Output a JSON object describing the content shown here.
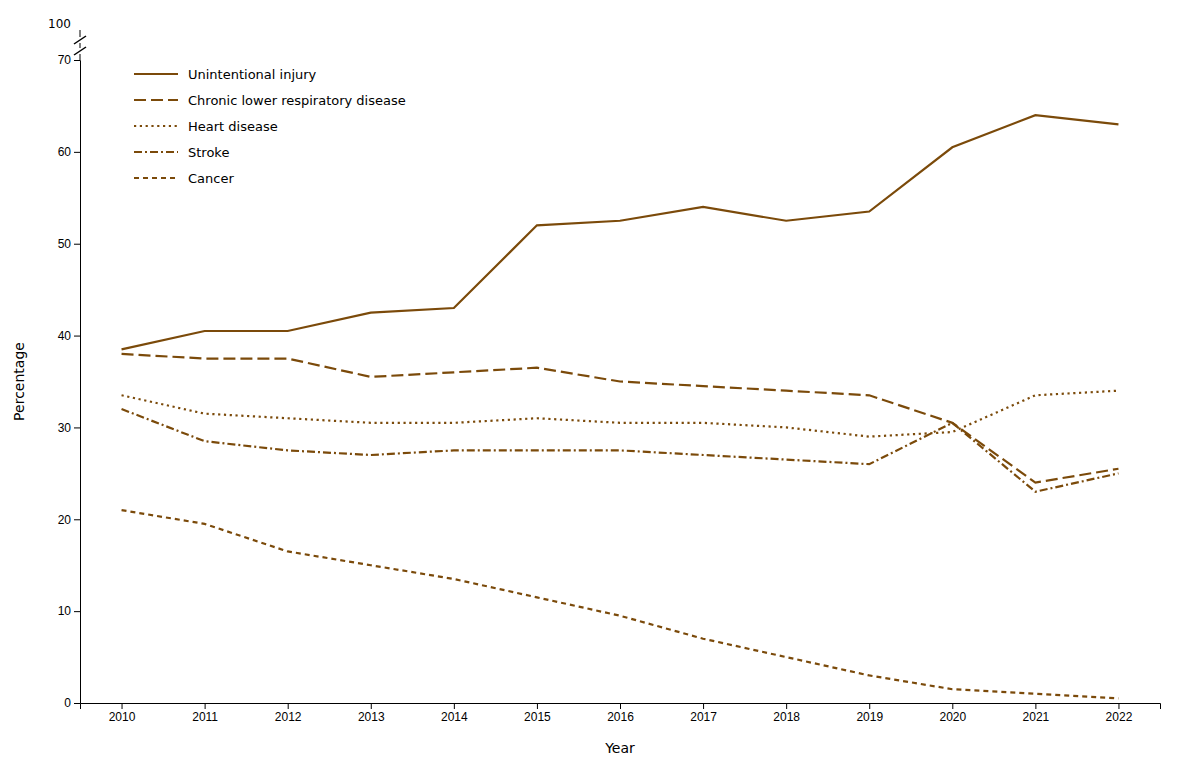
{
  "chart_data": {
    "type": "line",
    "x_label": "Year",
    "y_label": "Percentage",
    "x": [
      2010,
      2011,
      2012,
      2013,
      2014,
      2015,
      2016,
      2017,
      2018,
      2019,
      2020,
      2021,
      2022
    ],
    "series": [
      {
        "name": "Unintentional injury",
        "color": "#7B4A0A",
        "line_style": "solid",
        "values": [
          38.5,
          40.5,
          40.5,
          42.5,
          43.0,
          52.0,
          52.5,
          54.0,
          52.5,
          53.5,
          60.5,
          64.0,
          63.0
        ]
      },
      {
        "name": "Chronic lower respiratory disease",
        "color": "#7B4A0A",
        "line_style": "longdash",
        "values": [
          38.0,
          37.5,
          37.5,
          35.5,
          36.0,
          36.5,
          35.0,
          34.5,
          34.0,
          33.5,
          30.5,
          24.0,
          25.5
        ]
      },
      {
        "name": "Heart disease",
        "color": "#7B4A0A",
        "line_style": "dotted",
        "values": [
          33.5,
          31.5,
          31.0,
          30.5,
          30.5,
          31.0,
          30.5,
          30.5,
          30.0,
          29.0,
          29.5,
          33.5,
          34.0
        ]
      },
      {
        "name": "Stroke",
        "color": "#7B4A0A",
        "line_style": "dashdot",
        "values": [
          32.0,
          28.5,
          27.5,
          27.0,
          27.5,
          27.5,
          27.5,
          27.0,
          26.5,
          26.0,
          30.5,
          23.0,
          25.0
        ]
      },
      {
        "name": "Cancer",
        "color": "#7B4A0A",
        "line_style": "dashed",
        "values": [
          21.0,
          19.5,
          16.5,
          15.0,
          13.5,
          11.5,
          9.5,
          7.0,
          5.0,
          3.0,
          1.5,
          1.0,
          0.5
        ]
      }
    ],
    "xlim": [
      2009.5,
      2022.5
    ],
    "xticks": [
      2010,
      2011,
      2012,
      2013,
      2014,
      2015,
      2016,
      2017,
      2018,
      2019,
      2020,
      2021,
      2022
    ],
    "ylim": [
      0,
      70
    ],
    "yticks": [
      0,
      10,
      20,
      30,
      40,
      50,
      60,
      70
    ],
    "annotations": [
      {
        "text": "100"
      }
    ],
    "grid": false,
    "legend": "upper left"
  }
}
